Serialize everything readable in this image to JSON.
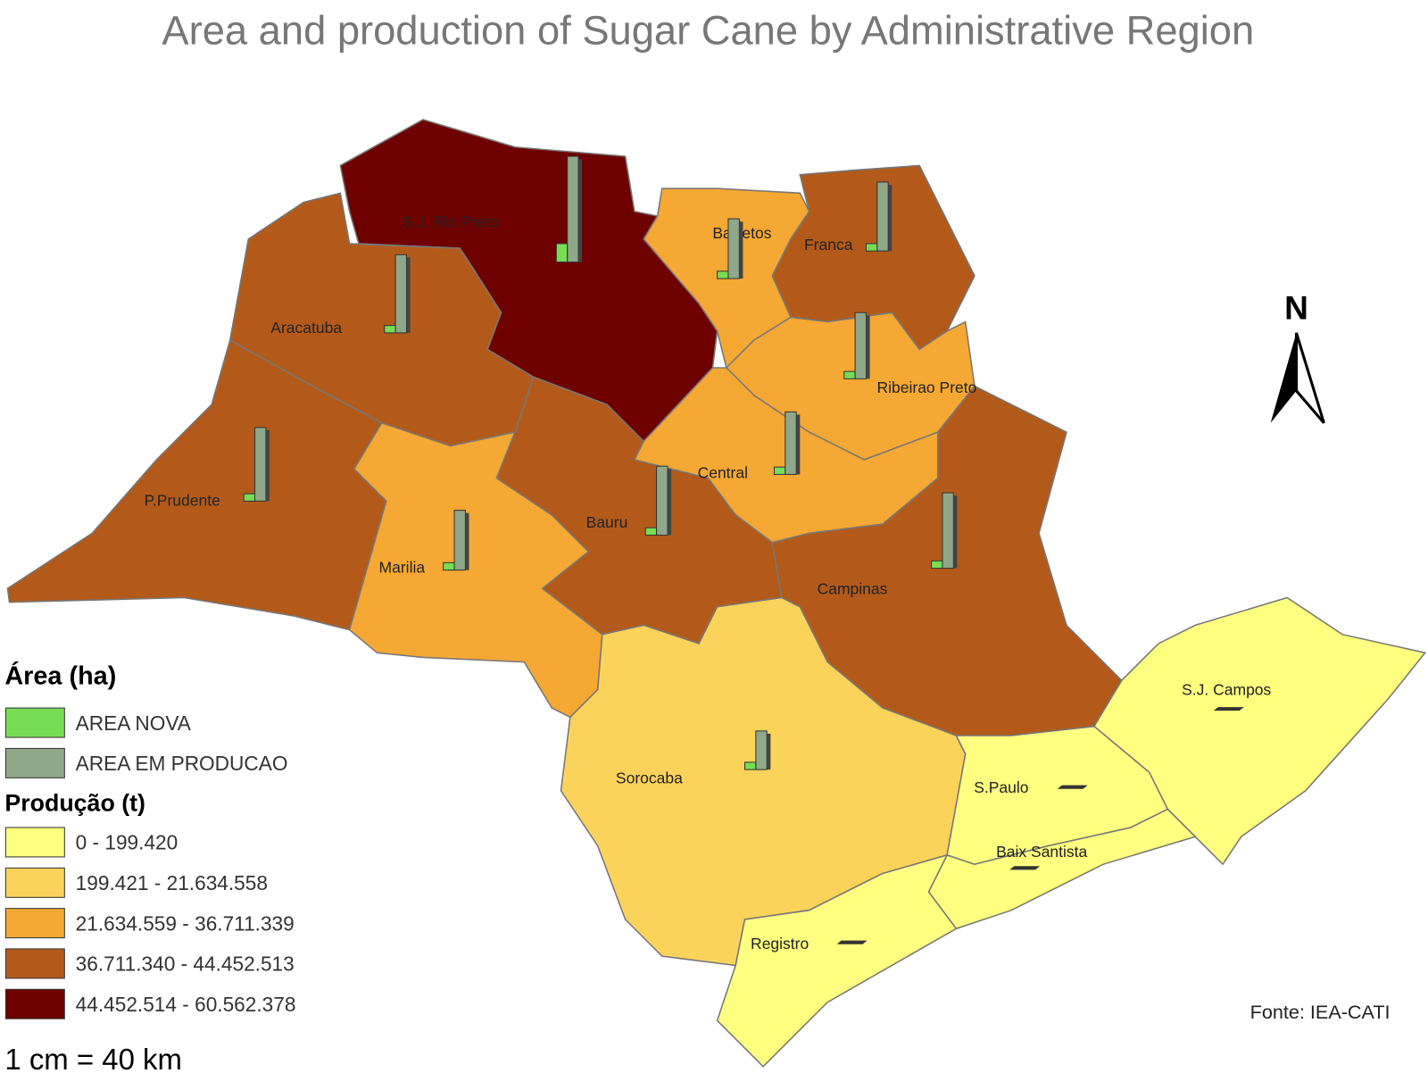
{
  "title": "Area and production of Sugar Cane by Administrative Region",
  "regions": [
    {
      "label": "S.J. Rio Preto",
      "class": 4
    },
    {
      "label": "Aracatuba",
      "class": 3
    },
    {
      "label": "P.Prudente",
      "class": 3
    },
    {
      "label": "Marilia",
      "class": 2
    },
    {
      "label": "Bauru",
      "class": 3
    },
    {
      "label": "Barretos",
      "class": 2
    },
    {
      "label": "Franca",
      "class": 3
    },
    {
      "label": "Ribeirao Preto",
      "class": 2
    },
    {
      "label": "Central",
      "class": 2
    },
    {
      "label": "Campinas",
      "class": 3
    },
    {
      "label": "Sorocaba",
      "class": 1
    },
    {
      "label": "S.J. Campos",
      "class": 0
    },
    {
      "label": "S.Paulo",
      "class": 0
    },
    {
      "label": "Baix Santista",
      "class": 0
    },
    {
      "label": "Registro",
      "class": 0
    }
  ],
  "legend": {
    "area_title": "Área (ha)",
    "area_items": [
      {
        "label": "AREA NOVA",
        "color": "#77dd55"
      },
      {
        "label": "AREA EM PRODUCAO",
        "color": "#8fa88a"
      }
    ],
    "production_title": "Produção (t)",
    "production_items": [
      {
        "label": "0 - 199.420",
        "color": "#ffff80"
      },
      {
        "label": "199.421 - 21.634.558",
        "color": "#fcd35a"
      },
      {
        "label": "21.634.559 - 36.711.339",
        "color": "#f5a833"
      },
      {
        "label": "36.711.340 - 44.452.513",
        "color": "#b35a1b"
      },
      {
        "label": "44.452.514 - 60.562.378",
        "color": "#6e0000"
      }
    ]
  },
  "north": "N",
  "scale": "1 cm = 40 km",
  "source": "Fonte: IEA-CATI"
}
